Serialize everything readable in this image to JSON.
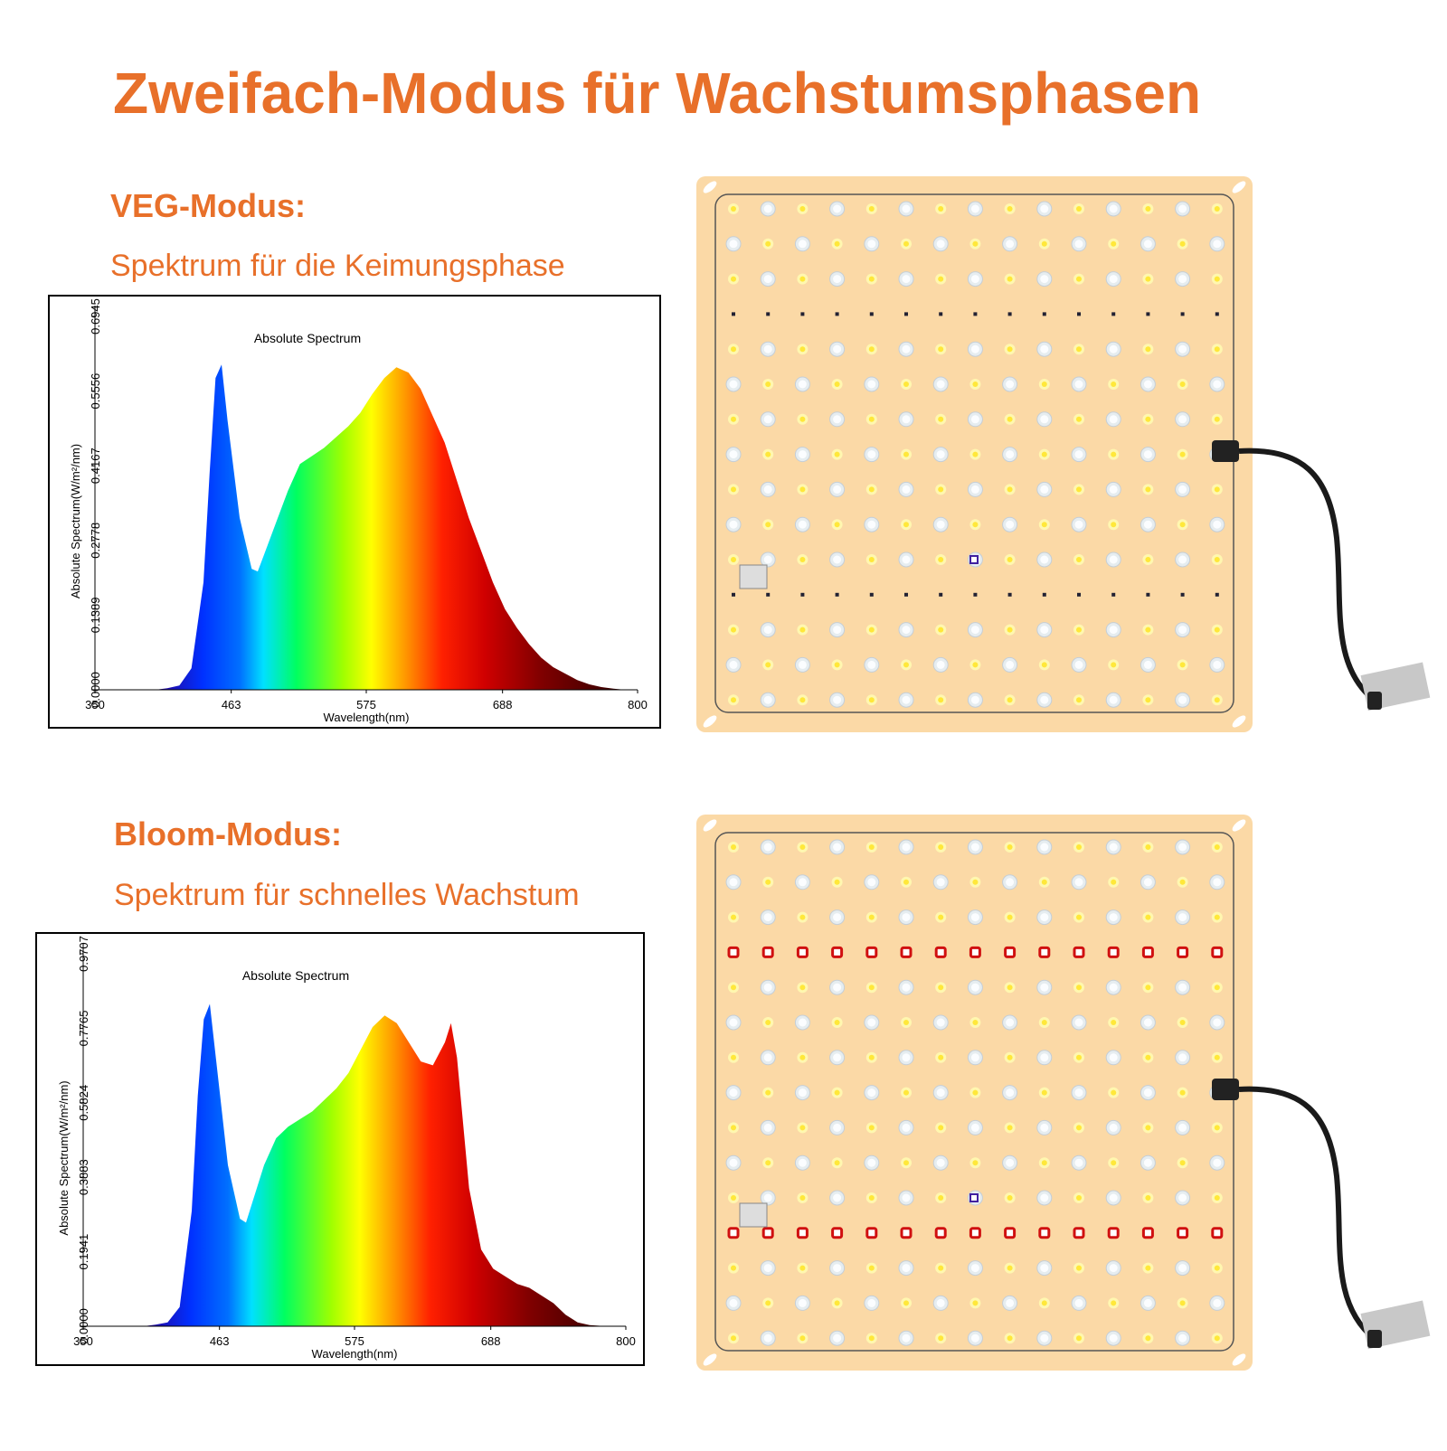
{
  "title": "Zweifach-Modus für Wachstumsphasen",
  "chart_data": [
    {
      "type": "area",
      "mode": "VEG-Modus:",
      "subtitle": "Spektrum für die Keimungsphase",
      "title": "Absolute Spectrum",
      "x_label": "Wavelength(nm)",
      "y_label": "Absolute Spectrum(W/m²/nm)",
      "xlim": [
        350,
        800
      ],
      "xticks": [
        350,
        463,
        575,
        688,
        800
      ],
      "ylim": [
        0,
        0.6945
      ],
      "yticks": [
        {
          "value": 0,
          "label": "0.0000"
        },
        0.1389,
        0.2778,
        0.4167,
        0.5556,
        0.6945
      ],
      "x": [
        400,
        410,
        420,
        430,
        440,
        445,
        450,
        455,
        460,
        470,
        480,
        485,
        490,
        500,
        510,
        520,
        530,
        540,
        550,
        560,
        570,
        580,
        590,
        600,
        610,
        620,
        630,
        640,
        650,
        660,
        670,
        680,
        690,
        700,
        710,
        720,
        730,
        740,
        750,
        760,
        770,
        780,
        790
      ],
      "values": [
        0,
        0.003,
        0.008,
        0.04,
        0.2,
        0.4,
        0.58,
        0.605,
        0.5,
        0.32,
        0.225,
        0.22,
        0.25,
        0.31,
        0.37,
        0.42,
        0.435,
        0.45,
        0.47,
        0.49,
        0.515,
        0.55,
        0.58,
        0.6,
        0.59,
        0.56,
        0.51,
        0.46,
        0.39,
        0.32,
        0.26,
        0.2,
        0.15,
        0.115,
        0.085,
        0.06,
        0.042,
        0.03,
        0.018,
        0.01,
        0.005,
        0.002,
        0
      ]
    },
    {
      "type": "area",
      "mode": "Bloom-Modus:",
      "subtitle": "Spektrum für schnelles Wachstum",
      "title": "Absolute Spectrum",
      "x_label": "Wavelength(nm)",
      "y_label": "Absolute Spectrum(W/m²/nm)",
      "xlim": [
        350,
        800
      ],
      "xticks": [
        350,
        463,
        575,
        688,
        800
      ],
      "ylim": [
        0,
        0.9707
      ],
      "yticks": [
        {
          "value": 0,
          "label": "0.0000"
        },
        0.1941,
        0.3883,
        0.5824,
        0.7765,
        0.9707
      ],
      "x": [
        400,
        410,
        420,
        430,
        440,
        445,
        450,
        455,
        460,
        470,
        480,
        485,
        490,
        500,
        510,
        520,
        530,
        540,
        550,
        560,
        570,
        580,
        590,
        600,
        610,
        620,
        630,
        640,
        650,
        655,
        660,
        670,
        680,
        690,
        700,
        710,
        720,
        730,
        740,
        750,
        760,
        770,
        780,
        790
      ],
      "values": [
        0,
        0.004,
        0.01,
        0.05,
        0.3,
        0.6,
        0.8,
        0.84,
        0.7,
        0.42,
        0.28,
        0.27,
        0.32,
        0.42,
        0.49,
        0.52,
        0.54,
        0.56,
        0.59,
        0.62,
        0.66,
        0.72,
        0.78,
        0.81,
        0.79,
        0.74,
        0.69,
        0.68,
        0.74,
        0.79,
        0.7,
        0.36,
        0.2,
        0.15,
        0.13,
        0.11,
        0.1,
        0.08,
        0.06,
        0.03,
        0.01,
        0.003,
        0.001,
        0
      ]
    }
  ]
}
